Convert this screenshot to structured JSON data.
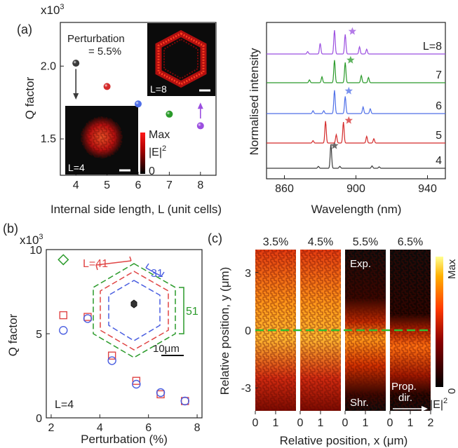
{
  "panel_labels": {
    "a": "(a)",
    "b": "(b)",
    "c": "(c)"
  },
  "colors": {
    "L4": "#3a3a3a",
    "L5": "#d42b2b",
    "L6": "#4f6fe8",
    "L7": "#2a9a2a",
    "L8": "#9b4fe0"
  },
  "chart_data": [
    {
      "id": "a_left",
      "type": "scatter",
      "multiplier": "x10",
      "multiplier_exp": "3",
      "xlabel": "Internal side length, L (unit cells)",
      "ylabel": "Q factor",
      "xlim": [
        3.5,
        8.5
      ],
      "ylim": [
        1.25,
        2.3
      ],
      "xticks": [
        4,
        5,
        6,
        7,
        8
      ],
      "yticks": [
        1.5,
        2.0
      ],
      "ytick_labels": [
        "1.5",
        "2.0"
      ],
      "annotation_text": "Perturbation",
      "annotation_value": "= 5.5%",
      "points": [
        {
          "x": 4,
          "y": 2.02,
          "color": "#3a3a3a"
        },
        {
          "x": 5,
          "y": 1.86,
          "color": "#d42b2b"
        },
        {
          "x": 6,
          "y": 1.74,
          "color": "#4f6fe8"
        },
        {
          "x": 7,
          "y": 1.67,
          "color": "#2a9a2a"
        },
        {
          "x": 8,
          "y": 1.59,
          "color": "#9b4fe0"
        }
      ],
      "arrows": [
        {
          "x": 4,
          "from": 1.98,
          "to": 1.77,
          "color": "#3a3a3a"
        },
        {
          "x": 8,
          "from": 1.64,
          "to": 1.75,
          "color": "#9b4fe0"
        }
      ],
      "inset_top_label": "L=8",
      "inset_bottom_label": "L=4",
      "colorbar_max": "Max",
      "colorbar_min": "0",
      "colorbar_quantity": "|E|",
      "colorbar_quantity_sup": "2"
    },
    {
      "id": "a_right",
      "type": "line",
      "xlabel": "Wavelength (nm)",
      "ylabel": "Normalised intensity",
      "xlim": [
        850,
        950
      ],
      "xticks": [
        860,
        900,
        940
      ],
      "series": [
        {
          "name": "4",
          "color": "#3a3a3a",
          "peaks": [
            [
              879,
              0.08
            ],
            [
              886,
              1.0
            ],
            [
              891,
              0.08
            ],
            [
              909,
              0.1
            ],
            [
              913,
              0.06
            ]
          ]
        },
        {
          "name": "5",
          "color": "#d42b2b",
          "peaks": [
            [
              876,
              0.1
            ],
            [
              883,
              0.92
            ],
            [
              889,
              0.35
            ],
            [
              893,
              0.88
            ],
            [
              906,
              0.28
            ],
            [
              910,
              0.18
            ]
          ]
        },
        {
          "name": "6",
          "color": "#4f6fe8",
          "peaks": [
            [
              876,
              0.12
            ],
            [
              882,
              0.12
            ],
            [
              888,
              0.98
            ],
            [
              894,
              0.72
            ],
            [
              904,
              0.28
            ],
            [
              908,
              0.2
            ]
          ]
        },
        {
          "name": "7",
          "color": "#2a9a2a",
          "peaks": [
            [
              874,
              0.12
            ],
            [
              881,
              0.25
            ],
            [
              888,
              0.95
            ],
            [
              894,
              0.85
            ],
            [
              903,
              0.3
            ],
            [
              907,
              0.22
            ]
          ]
        },
        {
          "name": "L=8",
          "color": "#9b4fe0",
          "peaks": [
            [
              873,
              0.1
            ],
            [
              880,
              0.45
            ],
            [
              888,
              1.0
            ],
            [
              894,
              0.82
            ],
            [
              902,
              0.3
            ],
            [
              906,
              0.2
            ]
          ]
        }
      ],
      "stars_x": [
        888,
        896,
        896,
        897,
        898
      ]
    },
    {
      "id": "b",
      "type": "scatter",
      "multiplier": "x10",
      "multiplier_exp": "3",
      "xlabel": "Perturbation (%)",
      "ylabel": "Q factor",
      "xlim": [
        1.8,
        8.2
      ],
      "ylim": [
        0,
        10
      ],
      "xticks": [
        2,
        4,
        6,
        8
      ],
      "yticks": [
        0,
        5,
        10
      ],
      "series": [
        {
          "marker": "square",
          "color": "#e04545",
          "x": [
            2.5,
            3.5,
            4.5,
            5.5,
            6.5,
            7.5
          ],
          "y": [
            6.1,
            6.0,
            3.7,
            2.2,
            1.4,
            1.0
          ]
        },
        {
          "marker": "circle",
          "color": "#4a5ee0",
          "x": [
            2.5,
            3.5,
            4.5,
            5.5,
            6.5,
            7.5
          ],
          "y": [
            5.2,
            5.9,
            3.4,
            2.0,
            1.5,
            1.0
          ]
        },
        {
          "marker": "diamond",
          "color": "#2a9a2a",
          "x": [
            2.5
          ],
          "y": [
            9.4
          ]
        }
      ],
      "corner_label": "L=4",
      "inset_labels": {
        "red": "L=41",
        "blue": "31",
        "green": "51",
        "scale": "10μm"
      }
    },
    {
      "id": "c",
      "type": "heatmap",
      "xlabel": "Relative position, x (μm)",
      "ylabel": "Relative position, y (μm)",
      "columns": [
        "3.5%",
        "4.5%",
        "5.5%",
        "6.5%"
      ],
      "xticks": [
        0,
        1,
        2
      ],
      "yticks": [
        3,
        0,
        -3
      ],
      "ylim": [
        -4.2,
        4.2
      ],
      "tags": {
        "exp": "Exp.",
        "shr": "Shr.",
        "prop": "Prop.",
        "dir": "dir."
      },
      "colorbar_max": "Max",
      "colorbar_min": "0",
      "colorbar_quantity": "|E|",
      "colorbar_quantity_sup": "2"
    }
  ]
}
